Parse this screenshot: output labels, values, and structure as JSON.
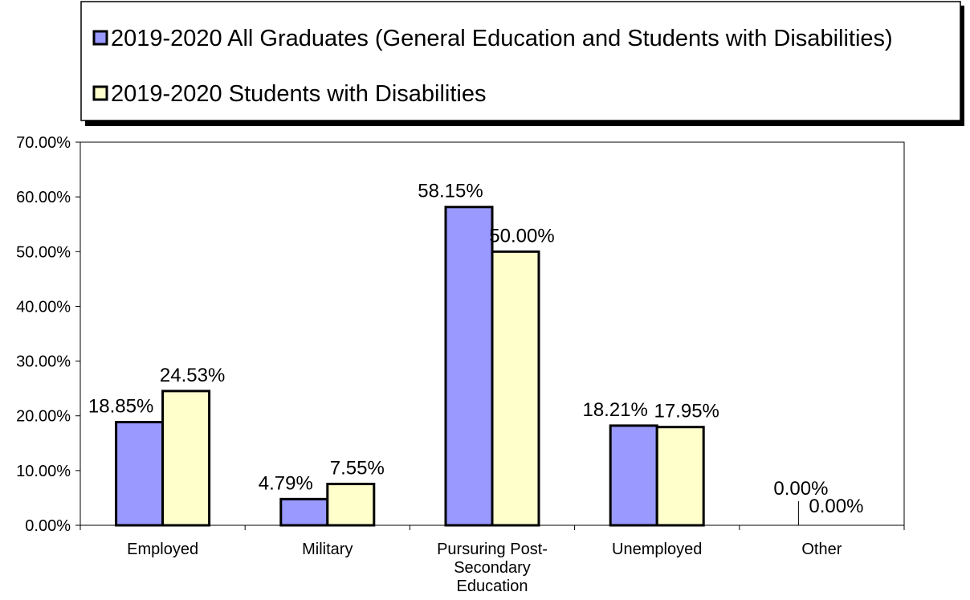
{
  "chart_data": {
    "type": "bar",
    "title": "",
    "xlabel": "",
    "ylabel": "",
    "categories": [
      [
        "Employed"
      ],
      [
        "Military"
      ],
      [
        "Pursuring Post-",
        "Secondary",
        "Education"
      ],
      [
        "Unemployed"
      ],
      [
        "Other"
      ]
    ],
    "series": [
      {
        "name": "2019-2020 All Graduates (General Education and Students with Disabilities)",
        "values": [
          18.85,
          4.79,
          58.15,
          18.21,
          0.0
        ],
        "value_labels": [
          "18.85%",
          "4.79%",
          "58.15%",
          "18.21%",
          "0.00%"
        ],
        "color": "#9999ff"
      },
      {
        "name": "2019-2020 Students with Disabilities",
        "values": [
          24.53,
          7.55,
          50.0,
          17.95,
          0.0
        ],
        "value_labels": [
          "24.53%",
          "7.55%",
          "50.00%",
          "17.95%",
          "0.00%"
        ],
        "color": "#ffffcc"
      }
    ],
    "y_ticks": [
      "0.00%",
      "10.00%",
      "20.00%",
      "30.00%",
      "40.00%",
      "50.00%",
      "60.00%",
      "70.00%"
    ],
    "ylim": [
      0,
      70
    ],
    "grid": false,
    "legend_position": "top"
  }
}
